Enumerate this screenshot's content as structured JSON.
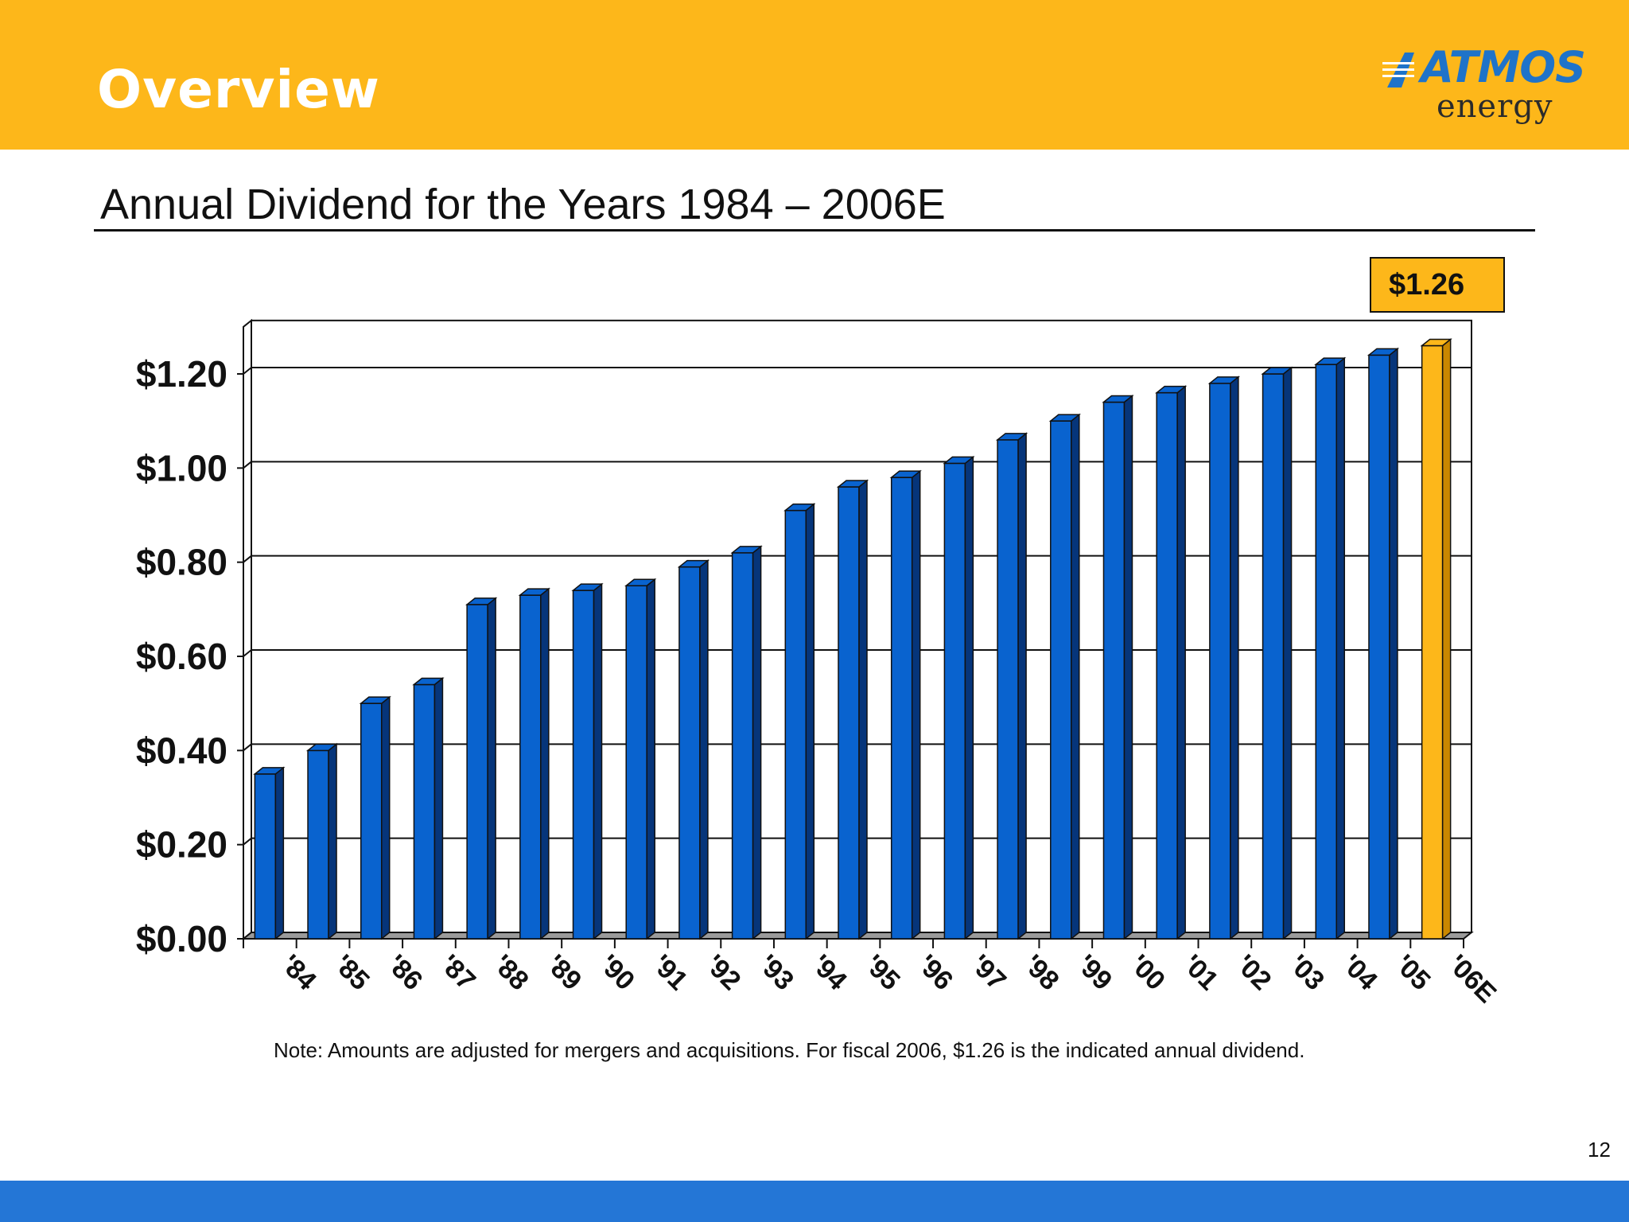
{
  "header": {
    "title": "Overview",
    "logo_text": "ATMOS",
    "logo_subtext": "energy",
    "band_color": "#FDB71A",
    "logo_color": "#1F73C9"
  },
  "slide": {
    "subtitle": "Annual Dividend for the Years 1984 – 2006E",
    "callout": "$1.26",
    "note": "Note: Amounts are adjusted for mergers and acquisitions. For fiscal 2006, $1.26 is the indicated annual dividend.",
    "page_number": "12"
  },
  "chart_data": {
    "type": "bar",
    "title": "Annual Dividend for the Years 1984 – 2006E",
    "xlabel": "",
    "ylabel": "",
    "categories": [
      "'84",
      "'85",
      "'86",
      "'87",
      "'88",
      "'89",
      "'90",
      "'91",
      "'92",
      "'93",
      "'94",
      "'95",
      "'96",
      "'97",
      "'98",
      "'99",
      "'00",
      "'01",
      "'02",
      "'03",
      "'04",
      "'05",
      "'06E"
    ],
    "values": [
      0.35,
      0.4,
      0.5,
      0.54,
      0.71,
      0.73,
      0.74,
      0.75,
      0.79,
      0.82,
      0.91,
      0.96,
      0.98,
      1.01,
      1.06,
      1.1,
      1.14,
      1.16,
      1.18,
      1.2,
      1.22,
      1.24,
      1.26
    ],
    "highlight_category": "'06E",
    "ylim": [
      0,
      1.3
    ],
    "yticks": [
      0,
      0.2,
      0.4,
      0.6,
      0.8,
      1.0,
      1.2
    ],
    "ytick_labels": [
      "$0.00",
      "$0.20",
      "$0.40",
      "$0.60",
      "$0.80",
      "$1.00",
      "$1.20"
    ],
    "grid": true,
    "colors": {
      "bar": "#0963CF",
      "bar_side": "#06357A",
      "highlight": "#FDB71A",
      "highlight_side": "#C98700"
    }
  }
}
